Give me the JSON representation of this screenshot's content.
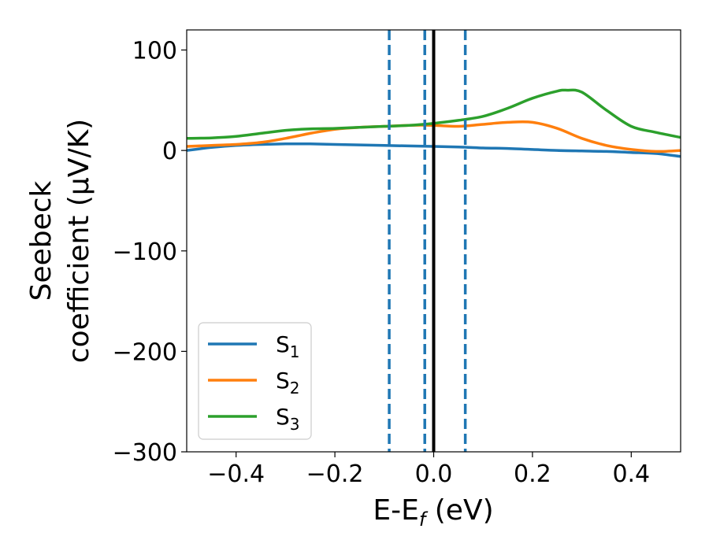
{
  "chart_data": {
    "type": "line",
    "xlabel": {
      "main": "E-E",
      "sub": "f",
      "suffix": " (eV)"
    },
    "ylabel": {
      "line1": "Seebeck",
      "line2": "coefficient  (μV/K)"
    },
    "xlim": [
      -0.5,
      0.5
    ],
    "ylim": [
      -300,
      120
    ],
    "xticks": [
      -0.4,
      -0.2,
      0.0,
      0.2,
      0.4
    ],
    "xtick_labels": [
      "−0.4",
      "−0.2",
      "0.0",
      "0.2",
      "0.4"
    ],
    "yticks": [
      100,
      0,
      -100,
      -200,
      -300
    ],
    "ytick_labels": [
      "100",
      "0",
      "−100",
      "−200",
      "−300"
    ],
    "grid": false,
    "legend": "lower-left",
    "vlines": [
      {
        "x": 0.0,
        "style": "solid",
        "color": "#000000"
      },
      {
        "x": -0.09,
        "style": "dashed",
        "color": "#1f77b4"
      },
      {
        "x": -0.018,
        "style": "dashed",
        "color": "#1f77b4"
      },
      {
        "x": 0.064,
        "style": "dashed",
        "color": "#1f77b4"
      }
    ],
    "series": [
      {
        "name": "S",
        "sub": "1",
        "color": "#1f77b4",
        "x": [
          -0.5,
          -0.45,
          -0.4,
          -0.35,
          -0.3,
          -0.25,
          -0.2,
          -0.15,
          -0.1,
          -0.05,
          0.0,
          0.05,
          0.1,
          0.15,
          0.2,
          0.25,
          0.3,
          0.35,
          0.4,
          0.45,
          0.5
        ],
        "y": [
          0,
          3,
          5,
          6,
          6.5,
          6.5,
          6,
          5.5,
          5,
          4.5,
          4,
          3.5,
          2.5,
          2,
          1,
          0,
          -0.5,
          -1,
          -2,
          -3,
          -6
        ]
      },
      {
        "name": "S",
        "sub": "2",
        "color": "#ff7f0e",
        "x": [
          -0.5,
          -0.45,
          -0.4,
          -0.35,
          -0.3,
          -0.25,
          -0.2,
          -0.15,
          -0.1,
          -0.05,
          0.0,
          0.05,
          0.1,
          0.15,
          0.2,
          0.25,
          0.3,
          0.35,
          0.4,
          0.45,
          0.5
        ],
        "y": [
          4,
          5,
          6,
          8,
          12,
          17,
          21,
          23,
          24,
          25,
          25,
          24,
          26,
          28,
          28,
          22,
          12,
          5,
          1,
          -1,
          0
        ]
      },
      {
        "name": "S",
        "sub": "3",
        "color": "#2ca02c",
        "x": [
          -0.5,
          -0.45,
          -0.4,
          -0.35,
          -0.3,
          -0.25,
          -0.2,
          -0.15,
          -0.1,
          -0.05,
          0.0,
          0.05,
          0.1,
          0.15,
          0.2,
          0.25,
          0.27,
          0.3,
          0.35,
          0.4,
          0.45,
          0.5
        ],
        "y": [
          12,
          12.5,
          14,
          17,
          20,
          21.5,
          22,
          23,
          24,
          25,
          27,
          30,
          34,
          42,
          52,
          59,
          60,
          58,
          40,
          24,
          18,
          13
        ]
      }
    ]
  }
}
